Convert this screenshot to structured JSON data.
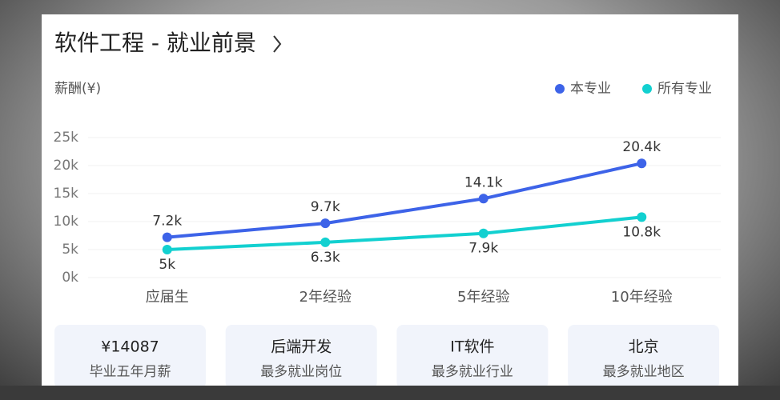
{
  "chart_data": {
    "type": "line",
    "title": "软件工程 - 就业前景",
    "y_label": "薪酬(¥)",
    "categories": [
      "应届生",
      "2年经验",
      "5年经验",
      "10年经验"
    ],
    "series": [
      {
        "name": "本专业",
        "color": "#3d63e8",
        "values": [
          7200,
          9700,
          14100,
          20400
        ],
        "value_labels": [
          "7.2k",
          "9.7k",
          "14.1k",
          "20.4k"
        ]
      },
      {
        "name": "所有专业",
        "color": "#12d0d0",
        "values": [
          5000,
          6300,
          7900,
          10800
        ],
        "value_labels": [
          "5k",
          "6.3k",
          "7.9k",
          "10.8k"
        ]
      }
    ],
    "ylim": [
      0,
      25000
    ],
    "yticks": [
      {
        "value": 0,
        "label": "0k"
      },
      {
        "value": 5000,
        "label": "5k"
      },
      {
        "value": 10000,
        "label": "10k"
      },
      {
        "value": 15000,
        "label": "15k"
      },
      {
        "value": 20000,
        "label": "20k"
      },
      {
        "value": 25000,
        "label": "25k"
      }
    ],
    "grid": true,
    "legend": "top-right"
  },
  "cards": [
    {
      "value": "¥14087",
      "label": "毕业五年月薪"
    },
    {
      "value": "后端开发",
      "label": "最多就业岗位"
    },
    {
      "value": "IT软件",
      "label": "最多就业行业"
    },
    {
      "value": "北京",
      "label": "最多就业地区"
    }
  ]
}
